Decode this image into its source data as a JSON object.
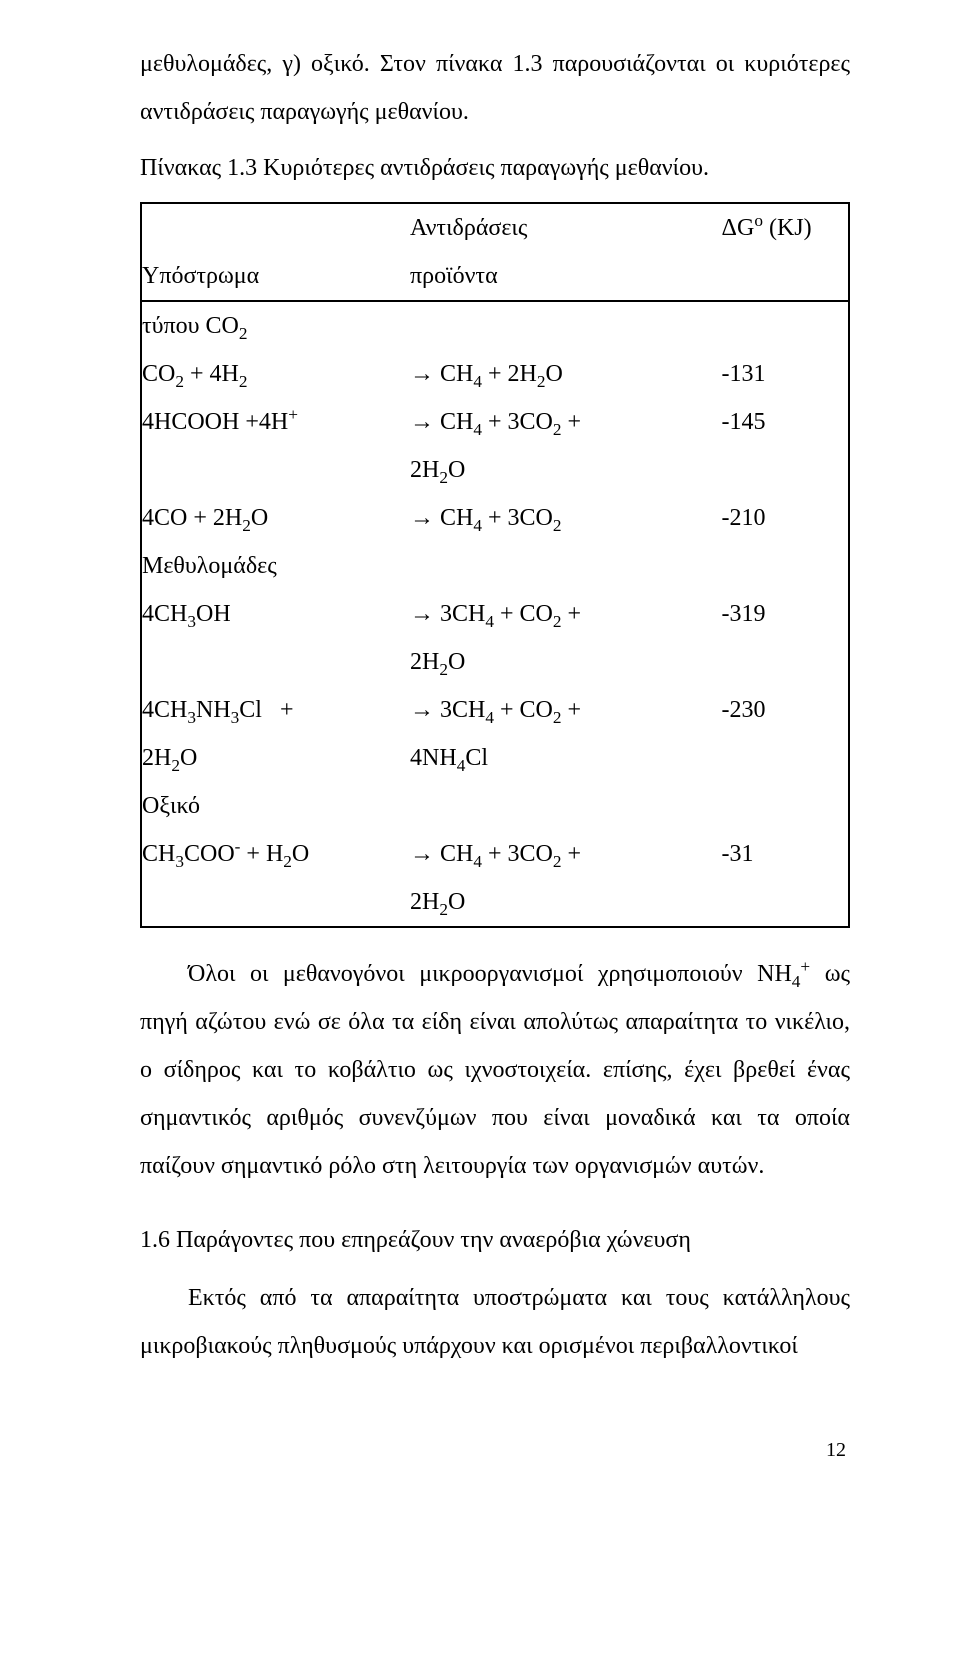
{
  "intro": {
    "line1_a": "μεθυλομάδες, γ) οξικό. Στον πίνακα 1.3 παρουσιάζονται οι κυριότερες",
    "line1_b": "αντιδράσεις παραγωγής μεθανίου."
  },
  "caption": "Πίνακας 1.3 Κυριότερες αντιδράσεις παραγωγής μεθανίου.",
  "table": {
    "header": {
      "reactions": "Αντιδράσεις",
      "substrate": "Υπόστρωμα",
      "products": "προϊόντα",
      "dg_html": "ΔG<sup>o</sup> (KJ)"
    },
    "rows": {
      "type_co2": "τύπου CO<sub>2</sub>",
      "r1_sub": "CO<sub>2</sub> + 4H<sub>2</sub>",
      "r1_prod": "→ CH<sub>4</sub> + 2H<sub>2</sub>O",
      "r1_dg": "-131",
      "r2_sub": "4HCOOH +4H<sup>+</sup>",
      "r2_prod_a": "→ CH<sub>4</sub> + 3CO<sub>2</sub> +",
      "r2_prod_b": "2H<sub>2</sub>O",
      "r2_dg": "-145",
      "r3_sub": "4CO + 2H<sub>2</sub>O",
      "r3_prod": "→ CH<sub>4</sub> + 3CO<sub>2</sub>",
      "r3_dg": "-210",
      "methyl": "Μεθυλομάδες",
      "r4_sub": "4CH<sub>3</sub>OH",
      "r4_prod_a": "→ 3CH<sub>4</sub> + CO<sub>2</sub> +",
      "r4_prod_b": "2H<sub>2</sub>O",
      "r4_dg": "-319",
      "r5_sub_a": "4CH<sub>3</sub>NH<sub>3</sub>Cl &nbsp; +",
      "r5_sub_b": "2H<sub>2</sub>O",
      "r5_prod_a": "→ 3CH<sub>4</sub> + CO<sub>2</sub> +",
      "r5_prod_b": "4NH<sub>4</sub>Cl",
      "r5_dg": "-230",
      "acetic": "Οξικό",
      "r6_sub": "CH<sub>3</sub>COO<sup>-</sup> + H<sub>2</sub>O",
      "r6_prod_a": "→ CH<sub>4</sub> + 3CO<sub>2</sub> +",
      "r6_prod_b": "2H<sub>2</sub>O",
      "r6_dg": "-31"
    }
  },
  "body": {
    "p1": "Όλοι οι μεθανογόνοι μικροοργανισμοί χρησιμοποιούν ΝΗ<sub>4</sub><sup>+</sup> ως πηγή αζώτου ενώ σε όλα τα είδη είναι απολύτως απαραίτητα το νικέλιο, ο σίδηρος και το κοβάλτιο ως ιχνοστοιχεία. επίσης, έχει βρεθεί ένας σημαντικός αριθμός συνενζύμων που είναι μοναδικά και τα οποία παίζουν σημαντικό ρόλο στη λειτουργία των οργανισμών αυτών.",
    "heading": "1.6 Παράγοντες που επηρεάζουν την αναερόβια χώνευση",
    "p2": "Εκτός από τα απαραίτητα υποστρώματα και τους κατάλληλους μικροβιακούς πληθυσμούς υπάρχουν και ορισμένοι περιβαλλοντικοί"
  },
  "page_number": "12"
}
